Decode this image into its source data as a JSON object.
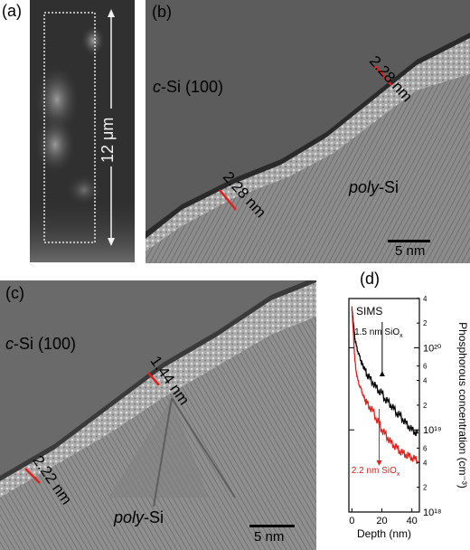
{
  "panel_a": {
    "label": "(a)",
    "scale_text": "12 μm"
  },
  "panel_b": {
    "label": "(b)",
    "material_top_prefix": "c",
    "material_top_suffix": "-Si (100)",
    "material_bottom_prefix": "poly",
    "material_bottom_suffix": "-Si",
    "thickness_1": "2.28 nm",
    "thickness_2": "2.28 nm",
    "scale_bar": "5 nm"
  },
  "panel_c": {
    "label": "(c)",
    "material_top_prefix": "c",
    "material_top_suffix": "-Si (100)",
    "material_bottom_prefix": "poly",
    "material_bottom_suffix": "-Si",
    "thickness_1": "1.44 nm",
    "thickness_2": "2.22 nm",
    "scale_bar": "5 nm"
  },
  "panel_d": {
    "label": "(d)"
  },
  "colors": {
    "measure_mark": "#e0201b",
    "series_thin": "#000000",
    "series_thick": "#e0201b"
  },
  "chart_data": {
    "type": "line",
    "title": "SIMS",
    "xlabel": "Depth (nm)",
    "ylabel": "Phosphorous concentration (cm⁻³)",
    "xlim": [
      -2,
      45
    ],
    "ylim_log10": [
      18,
      20.6
    ],
    "y_scale": "log",
    "x_ticks": [
      "0",
      "20",
      "40"
    ],
    "y_ticks": [
      "10¹⁸",
      "10¹⁹",
      "10²⁰"
    ],
    "y_minor_tick_labels": [
      {
        "v": 2e+18,
        "t": "2"
      },
      {
        "v": 4e+18,
        "t": "4"
      },
      {
        "v": 6e+18,
        "t": "6"
      },
      {
        "v": 2e+19,
        "t": "2"
      },
      {
        "v": 4e+19,
        "t": "4"
      },
      {
        "v": 6e+19,
        "t": "6"
      },
      {
        "v": 2e+20,
        "t": "2"
      },
      {
        "v": 4e+20,
        "t": "4"
      }
    ],
    "annotations": [
      {
        "text_base": "1.5 nm SiO",
        "text_sub": "x",
        "color": "#000000",
        "x": 19,
        "y": 1.6e+20,
        "arrow_to_y": 4.5e+19
      },
      {
        "text_base": "2.2 nm SiO",
        "text_sub": "x",
        "color": "#e0201b",
        "x": 17,
        "y": 3.3e+18,
        "arrow_from_y": 1.8e+19
      }
    ],
    "series": [
      {
        "color": "#000000",
        "x": [
          0,
          0.5,
          1,
          1.5,
          2,
          3,
          4,
          5,
          6,
          7,
          8,
          9,
          10,
          12,
          14,
          16,
          18,
          20,
          22,
          24,
          26,
          28,
          30,
          32,
          34,
          36,
          38,
          40,
          42,
          44
        ],
        "y": [
          3e+20,
          2.5e+20,
          2e+20,
          1.6e+20,
          1.3e+20,
          1.05e+20,
          9e+19,
          8e+19,
          7e+19,
          6.2e+19,
          5.8e+19,
          5.2e+19,
          4.8e+19,
          4.2e+19,
          3.8e+19,
          3.3e+19,
          3e+19,
          2.8e+19,
          2.4e+19,
          2.2e+19,
          2e+19,
          1.8e+19,
          1.6e+19,
          1.5e+19,
          1.35e+19,
          1.2e+19,
          1.1e+19,
          1e+19,
          9.5e+18,
          9e+18
        ]
      },
      {
        "color": "#e0201b",
        "x": [
          0,
          0.5,
          1,
          1.5,
          2,
          3,
          4,
          5,
          6,
          7,
          8,
          9,
          10,
          12,
          14,
          16,
          18,
          20,
          22,
          24,
          26,
          28,
          30,
          32,
          34,
          36,
          38,
          40,
          42,
          44
        ],
        "y": [
          3.2e+20,
          2.2e+20,
          1.5e+20,
          1e+20,
          7e+19,
          5e+19,
          4e+19,
          3.5e+19,
          3.2e+19,
          2.8e+19,
          2.5e+19,
          2.3e+19,
          2.1e+19,
          1.9e+19,
          1.7e+19,
          1.4e+19,
          1.2e+19,
          1e+19,
          9e+18,
          8e+18,
          7e+18,
          6.5e+18,
          6e+18,
          5.5e+18,
          5.2e+18,
          5e+18,
          4.8e+18,
          4.6e+18,
          4.4e+18,
          4.2e+18
        ]
      }
    ]
  }
}
